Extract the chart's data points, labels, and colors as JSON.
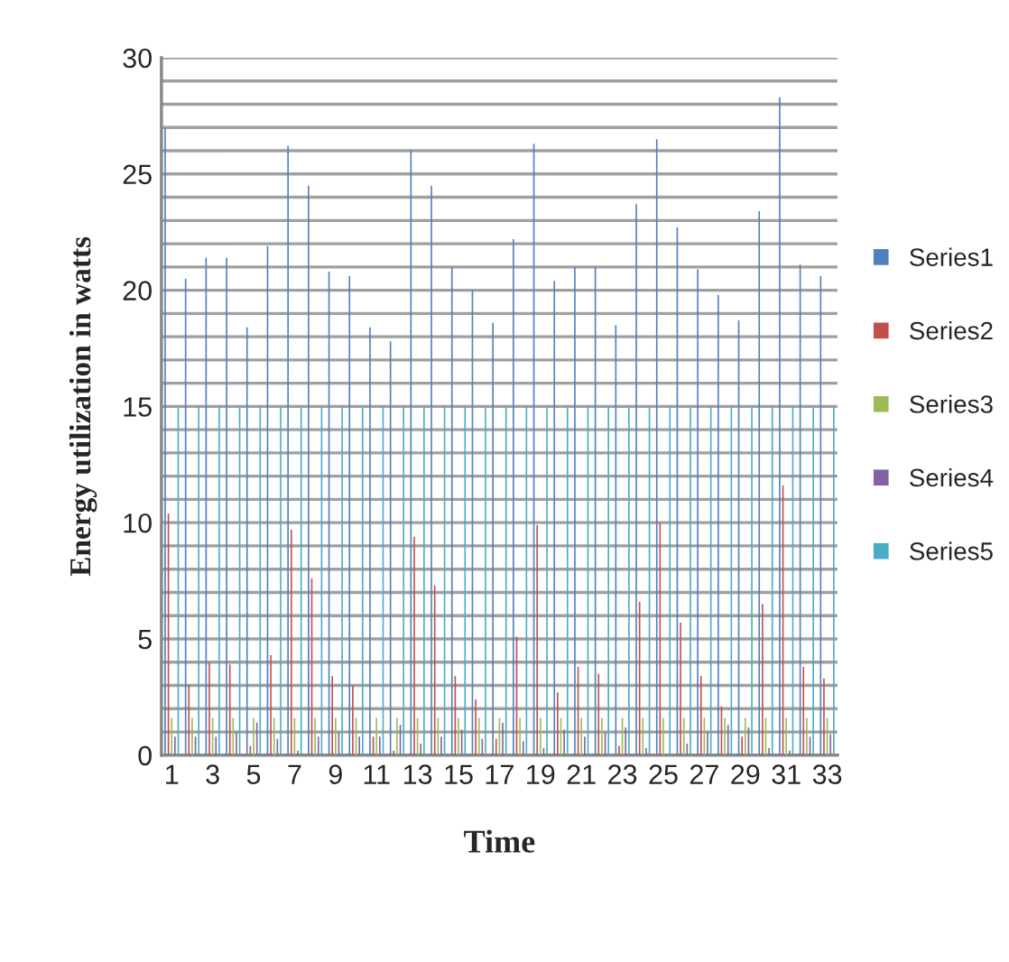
{
  "chart_data": {
    "type": "bar",
    "xlabel": "Time",
    "ylabel": "Energy utilization in watts",
    "categories": [
      "1",
      null,
      "3",
      null,
      "5",
      null,
      "7",
      null,
      "9",
      null,
      "11",
      null,
      "13",
      null,
      "15",
      null,
      "17",
      null,
      "19",
      null,
      "21",
      null,
      "23",
      null,
      "25",
      null,
      "27",
      null,
      "29",
      null,
      "31",
      null,
      "33"
    ],
    "series": [
      {
        "name": "Series1",
        "color": "#4f81bd",
        "values": [
          27,
          20.5,
          21.4,
          21.4,
          18.4,
          21.9,
          26.2,
          24.5,
          20.8,
          20.6,
          18.4,
          17.8,
          26,
          24.5,
          21,
          20,
          18.6,
          22.2,
          26.3,
          20.4,
          21,
          21,
          18.5,
          23.7,
          26.5,
          22.7,
          20.9,
          19.8,
          18.7,
          23.4,
          28.3,
          21.1,
          20.6
        ]
      },
      {
        "name": "Series2",
        "color": "#c0504d",
        "values": [
          10.4,
          3,
          4,
          3.9,
          0.4,
          4.3,
          9.7,
          7.6,
          3.4,
          3,
          0.8,
          0.2,
          9.4,
          7.3,
          3.4,
          2.4,
          0.7,
          5.1,
          9.9,
          2.7,
          3.8,
          3.5,
          0.4,
          6.6,
          10,
          5.7,
          3.4,
          2.1,
          0.8,
          6.5,
          11.6,
          3.8,
          3.3
        ]
      },
      {
        "name": "Series3",
        "color": "#9bbb59",
        "values": [
          1.6,
          1.6,
          1.6,
          1.6,
          1.6,
          1.6,
          1.6,
          1.6,
          1.6,
          1.6,
          1.6,
          1.6,
          1.6,
          1.6,
          1.6,
          1.6,
          1.6,
          1.6,
          1.6,
          1.6,
          1.6,
          1.6,
          1.6,
          1.6,
          1.6,
          1.6,
          1.6,
          1.6,
          1.6,
          1.6,
          1.6,
          1.6,
          1.6
        ]
      },
      {
        "name": "Series4",
        "color": "#8064a2",
        "values": [
          0.8,
          0.8,
          0.8,
          1,
          1.4,
          0.7,
          0.2,
          0.8,
          1,
          0.8,
          0.8,
          1.3,
          0.5,
          0.8,
          1.1,
          0.7,
          1.4,
          0.6,
          0.3,
          1.1,
          0.8,
          1,
          1.2,
          0.3,
          null,
          0.5,
          1,
          1.3,
          1.2,
          0.3,
          0.2,
          0.8,
          0.9
        ]
      },
      {
        "name": "Series5",
        "color": "#4bacc6",
        "values": [
          15,
          15,
          15,
          15,
          15,
          15,
          15,
          15,
          15,
          15,
          15,
          15,
          15,
          15,
          15,
          15,
          15,
          15,
          15,
          15,
          15,
          15,
          15,
          15,
          15,
          15,
          15,
          15,
          15,
          15,
          15,
          15,
          15
        ]
      }
    ],
    "ylim": [
      0,
      30
    ],
    "yticks": [
      0,
      {
        "value": 1,
        "label": null
      },
      {
        "value": 2,
        "label": null
      },
      {
        "value": 3,
        "label": null
      },
      {
        "value": 4,
        "label": null
      },
      5,
      {
        "value": 6,
        "label": null
      },
      {
        "value": 7,
        "label": null
      },
      {
        "value": 8,
        "label": null
      },
      {
        "value": 9,
        "label": null
      },
      10,
      {
        "value": 11,
        "label": null
      },
      {
        "value": 12,
        "label": null
      },
      {
        "value": 13,
        "label": null
      },
      {
        "value": 14,
        "label": null
      },
      15,
      {
        "value": 16,
        "label": null
      },
      {
        "value": 17,
        "label": null
      },
      {
        "value": 18,
        "label": null
      },
      {
        "value": 19,
        "label": null
      },
      20,
      {
        "value": 21,
        "label": null
      },
      {
        "value": 22,
        "label": null
      },
      {
        "value": 23,
        "label": null
      },
      {
        "value": 24,
        "label": null
      },
      25,
      {
        "value": 26,
        "label": null
      },
      {
        "value": 27,
        "label": null
      },
      {
        "value": 28,
        "label": null
      },
      {
        "value": 29,
        "label": null
      },
      30
    ],
    "grid": "y",
    "legend": "right"
  }
}
